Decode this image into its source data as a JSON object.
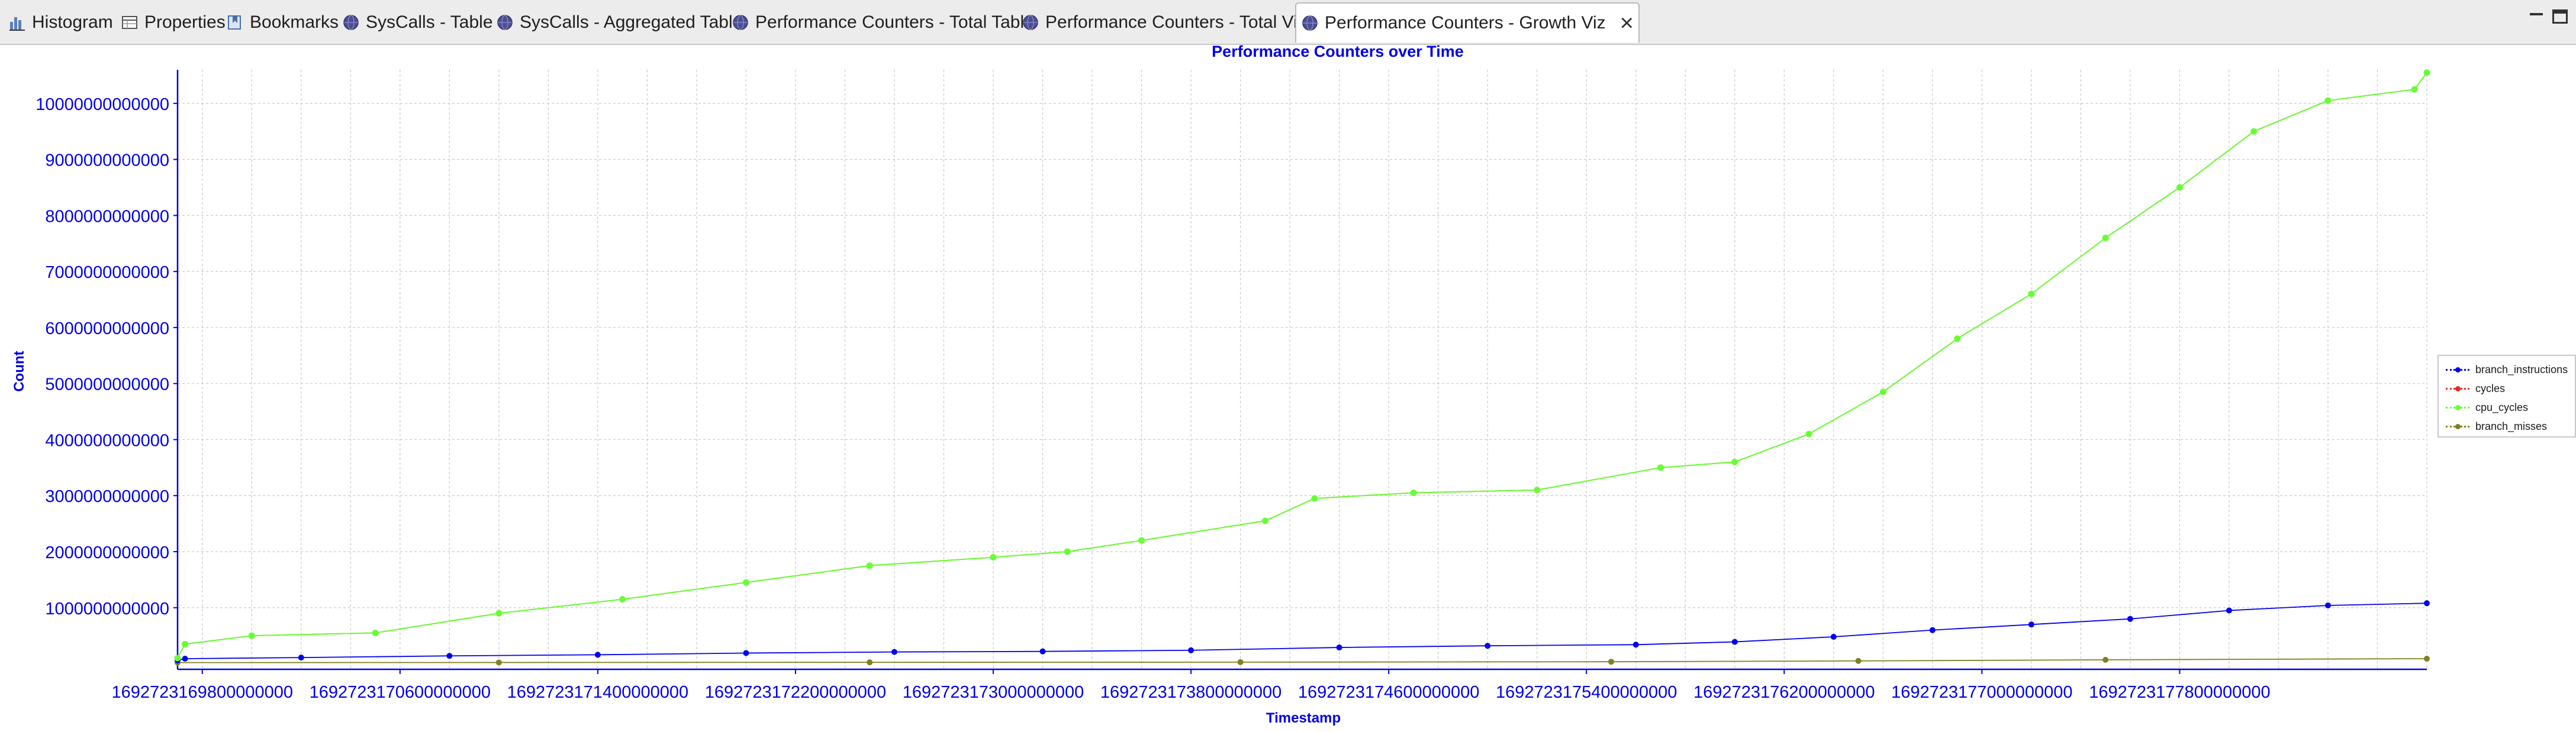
{
  "tabs": [
    {
      "label": "Histogram",
      "icon": "histogram-icon",
      "active": false
    },
    {
      "label": "Properties",
      "icon": "properties-table-icon",
      "active": false
    },
    {
      "label": "Bookmarks",
      "icon": "bookmarks-icon",
      "active": false
    },
    {
      "label": "SysCalls - Table",
      "icon": "globe-icon",
      "active": false
    },
    {
      "label": "SysCalls - Aggregated Table",
      "icon": "globe-icon",
      "active": false
    },
    {
      "label": "Performance Counters - Total Table",
      "icon": "globe-icon",
      "active": false
    },
    {
      "label": "Performance Counters - Total Viz",
      "icon": "globe-icon",
      "active": false
    },
    {
      "label": "Performance Counters - Growth Viz",
      "icon": "globe-icon",
      "active": true
    }
  ],
  "window_controls": {
    "minimize_icon": "minimize-icon",
    "maximize_icon": "maximize-icon",
    "close_icon": "close-icon"
  },
  "colors": {
    "axis_text": "#0000e6",
    "title": "#0000e6",
    "grid": "#c8c8c8",
    "branch_instructions": "#0000ee",
    "cycles": "#e03020",
    "cpu_cycles": "#66ff33",
    "branch_misses": "#808020"
  },
  "chart_data": {
    "type": "line",
    "title": "Performance Counters over Time",
    "xlabel": "Timestamp",
    "ylabel": "Count",
    "xlim": [
      1692723169700000000,
      1692723178800000000
    ],
    "ylim": [
      -100000000000,
      10600000000000
    ],
    "x_ticks": [
      "1692723169800000000",
      "1692723170600000000",
      "1692723171400000000",
      "1692723172200000000",
      "1692723173000000000",
      "1692723173800000000",
      "1692723174600000000",
      "1692723175400000000",
      "1692723176200000000",
      "1692723177000000000",
      "1692723177800000000"
    ],
    "y_ticks": [
      "1000000000000",
      "2000000000000",
      "3000000000000",
      "4000000000000",
      "5000000000000",
      "6000000000000",
      "7000000000000",
      "8000000000000",
      "9000000000000",
      "10000000000000"
    ],
    "grid": true,
    "legend_position": "right",
    "series": [
      {
        "name": "branch_instructions",
        "x": [
          1692723169700000000,
          1692723169730000000,
          1692723170200000000,
          1692723170800000000,
          1692723171400000000,
          1692723172000000000,
          1692723172600000000,
          1692723173200000000,
          1692723173800000000,
          1692723174400000000,
          1692723175000000000,
          1692723175600000000,
          1692723176000000000,
          1692723176400000000,
          1692723176800000000,
          1692723177200000000,
          1692723177600000000,
          1692723178000000000,
          1692723178400000000,
          1692723178800000000
        ],
        "y": [
          60000000000,
          90000000000,
          110000000000,
          140000000000,
          160000000000,
          190000000000,
          210000000000,
          220000000000,
          240000000000,
          290000000000,
          320000000000,
          340000000000,
          390000000000,
          480000000000,
          600000000000,
          700000000000,
          800000000000,
          950000000000,
          1040000000000,
          1080000000000
        ]
      },
      {
        "name": "cycles",
        "x": [
          1692723169700000000,
          1692723169730000000,
          1692723170000000000,
          1692723170500000000,
          1692723171000000000,
          1692723171500000000,
          1692723172000000000,
          1692723172500000000,
          1692723173000000000,
          1692723173300000000,
          1692723173600000000,
          1692723174100000000,
          1692723174300000000,
          1692723174700000000,
          1692723175200000000,
          1692723175700000000,
          1692723176000000000,
          1692723176300000000,
          1692723176600000000,
          1692723176900000000,
          1692723177200000000,
          1692723177500000000,
          1692723177800000000,
          1692723178100000000,
          1692723178400000000,
          1692723178750000000,
          1692723178800000000
        ],
        "y": [
          100000000000,
          350000000000,
          500000000000,
          550000000000,
          900000000000,
          1150000000000,
          1450000000000,
          1750000000000,
          1900000000000,
          2000000000000,
          2200000000000,
          2550000000000,
          2950000000000,
          3050000000000,
          3100000000000,
          3500000000000,
          3600000000000,
          4100000000000,
          4850000000000,
          5800000000000,
          6600000000000,
          7600000000000,
          8500000000000,
          9500000000000,
          10050000000000,
          10250000000000,
          10550000000000
        ]
      },
      {
        "name": "cpu_cycles",
        "x": [
          1692723169700000000,
          1692723169730000000,
          1692723170000000000,
          1692723170500000000,
          1692723171000000000,
          1692723171500000000,
          1692723172000000000,
          1692723172500000000,
          1692723173000000000,
          1692723173300000000,
          1692723173600000000,
          1692723174100000000,
          1692723174300000000,
          1692723174700000000,
          1692723175200000000,
          1692723175700000000,
          1692723176000000000,
          1692723176300000000,
          1692723176600000000,
          1692723176900000000,
          1692723177200000000,
          1692723177500000000,
          1692723177800000000,
          1692723178100000000,
          1692723178400000000,
          1692723178750000000,
          1692723178800000000
        ],
        "y": [
          100000000000,
          350000000000,
          500000000000,
          550000000000,
          900000000000,
          1150000000000,
          1450000000000,
          1750000000000,
          1900000000000,
          2000000000000,
          2200000000000,
          2550000000000,
          2950000000000,
          3050000000000,
          3100000000000,
          3500000000000,
          3600000000000,
          4100000000000,
          4850000000000,
          5800000000000,
          6600000000000,
          7600000000000,
          8500000000000,
          9500000000000,
          10050000000000,
          10250000000000,
          10550000000000
        ]
      },
      {
        "name": "branch_misses",
        "x": [
          1692723169700000000,
          1692723171000000000,
          1692723172500000000,
          1692723174000000000,
          1692723175500000000,
          1692723176500000000,
          1692723177500000000,
          1692723178800000000
        ],
        "y": [
          20000000000,
          22000000000,
          25000000000,
          28000000000,
          35000000000,
          50000000000,
          70000000000,
          90000000000
        ]
      }
    ]
  }
}
